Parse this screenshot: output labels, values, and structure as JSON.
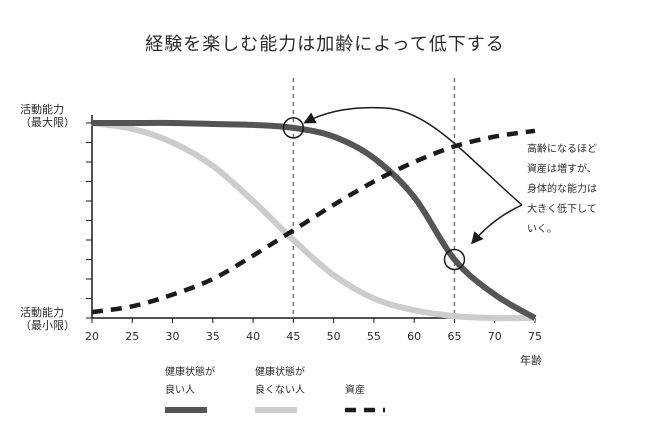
{
  "chart_data": {
    "type": "line",
    "title": "経験を楽しむ能力は加齢によって低下する",
    "xlabel": "年齢",
    "x": [
      20,
      25,
      30,
      35,
      40,
      45,
      50,
      55,
      60,
      65,
      70,
      75
    ],
    "xlim": [
      20,
      75
    ],
    "ylim": [
      0,
      1
    ],
    "ytop_label": [
      "活動能力",
      "（最大限）"
    ],
    "ybottom_label": [
      "活動能力",
      "（最小限）"
    ],
    "series": [
      {
        "name": "健康状態が良い人",
        "color": "#555555",
        "style": "solid",
        "values": [
          1.0,
          1.0,
          1.0,
          0.995,
          0.99,
          0.975,
          0.93,
          0.82,
          0.62,
          0.3,
          0.12,
          0.0
        ]
      },
      {
        "name": "健康状態が良くない人",
        "color": "#cccccc",
        "style": "solid",
        "values": [
          1.0,
          0.97,
          0.9,
          0.78,
          0.6,
          0.4,
          0.22,
          0.1,
          0.04,
          0.01,
          0.0,
          0.0
        ]
      },
      {
        "name": "資産",
        "color": "#1a1a1a",
        "style": "dashed",
        "values": [
          0.03,
          0.06,
          0.12,
          0.2,
          0.32,
          0.45,
          0.58,
          0.7,
          0.8,
          0.88,
          0.93,
          0.96
        ]
      }
    ],
    "vlines": [
      45,
      65
    ],
    "markers": [
      {
        "series": 0,
        "x": 45
      },
      {
        "series": 0,
        "x": 65
      }
    ],
    "annotation": "高齢になるほど\n資産は増すが、\n身体的な能力は\n大きく低下して\nいく。",
    "legend_labels": [
      "健康状態が\n良い人",
      "健康状態が\n良くない人",
      "資産"
    ],
    "grid": false
  }
}
